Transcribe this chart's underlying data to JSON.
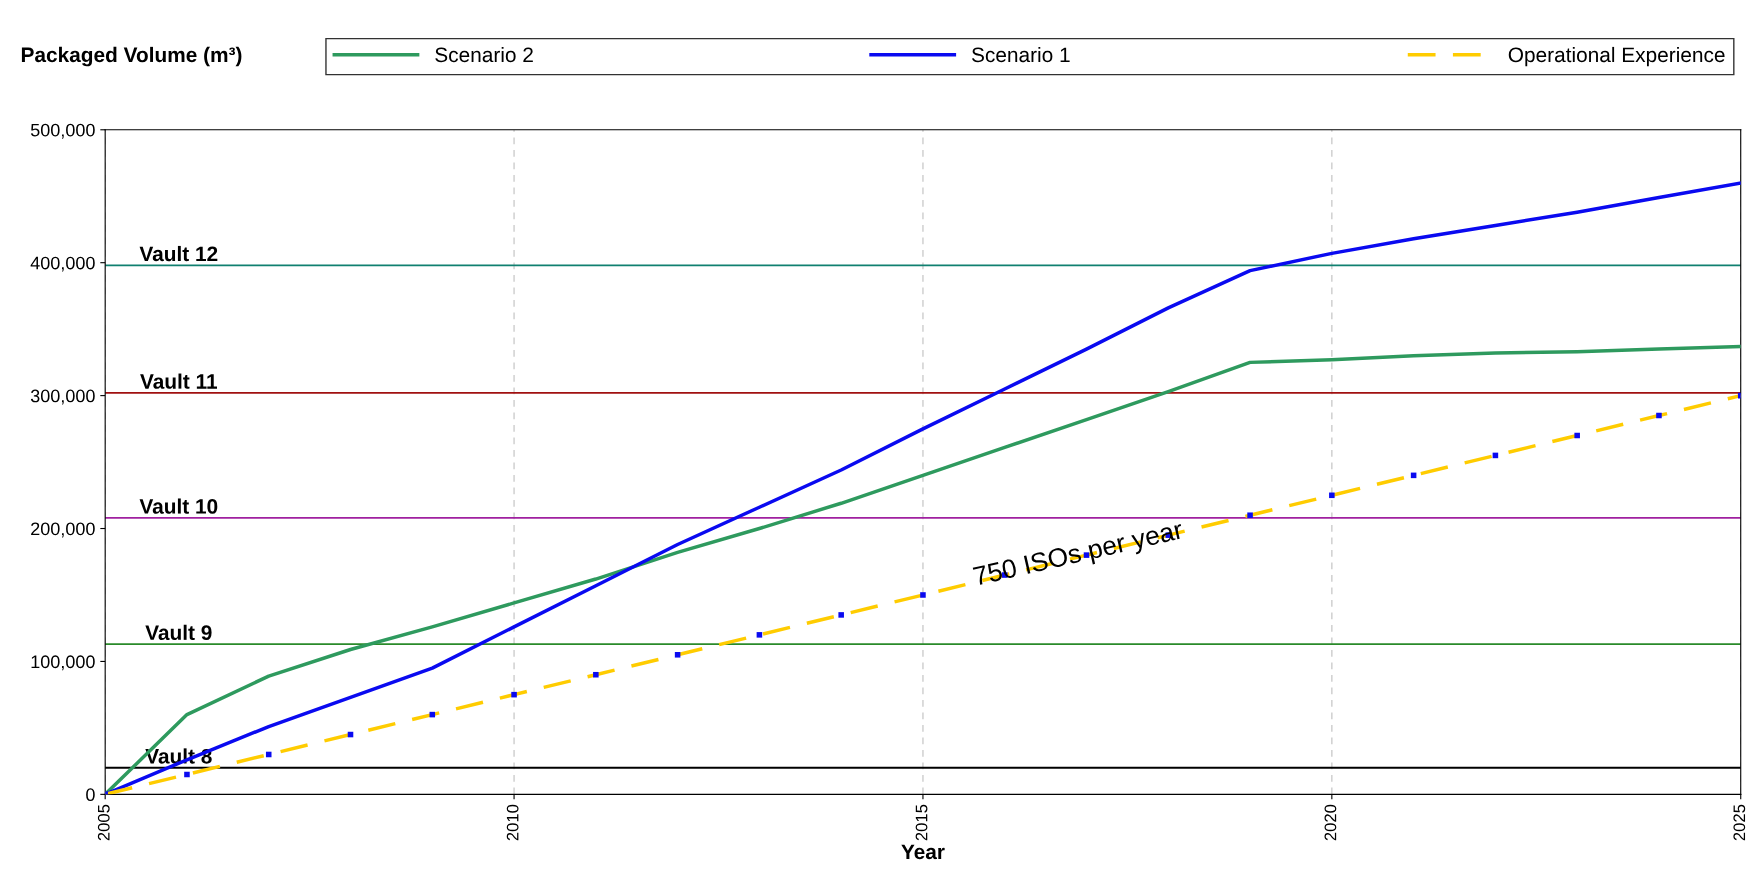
{
  "chart_data": {
    "type": "line",
    "xlabel": "Year",
    "ylabel": "Packaged Volume (m³)",
    "x": [
      2005,
      2006,
      2007,
      2008,
      2009,
      2010,
      2011,
      2012,
      2013,
      2014,
      2015,
      2016,
      2017,
      2018,
      2019,
      2020,
      2021,
      2022,
      2023,
      2024,
      2025
    ],
    "series": [
      {
        "name": "Scenario 2",
        "color": "#2e9a5e",
        "values": [
          0,
          60000,
          89000,
          109000,
          126000,
          144000,
          162000,
          182000,
          200000,
          219000,
          240000,
          261000,
          282000,
          303000,
          325000,
          327000,
          330000,
          332000,
          333000,
          335000,
          337000
        ]
      },
      {
        "name": "Scenario 1",
        "color": "#0a0af0",
        "values": [
          0,
          26000,
          51000,
          73000,
          95000,
          126000,
          157000,
          188000,
          216000,
          244000,
          275000,
          305000,
          335000,
          366000,
          394000,
          407000,
          418000,
          428000,
          438000,
          449000,
          460000
        ]
      },
      {
        "name": "Operational Experience",
        "color": "#ffcc00",
        "line_style": "dashed",
        "values": [
          0,
          15000,
          30000,
          45000,
          60000,
          75000,
          90000,
          105000,
          120000,
          135000,
          150000,
          165000,
          180000,
          195000,
          210000,
          225000,
          240000,
          255000,
          270000,
          285000,
          300000
        ]
      },
      {
        "type": "scatter",
        "color": "#0a0af0",
        "marker": "square",
        "values": [
          0,
          15000,
          30000,
          45000,
          60000,
          75000,
          90000,
          105000,
          120000,
          135000,
          150000,
          165000,
          180000,
          195000,
          210000,
          225000,
          240000,
          255000,
          270000,
          285000,
          300000
        ]
      }
    ],
    "xlim": [
      2005,
      2025
    ],
    "xticks": [
      2005,
      2010,
      2015,
      2020,
      2025
    ],
    "ylim": [
      0,
      500000
    ],
    "yticks": [
      {
        "value": 0,
        "label": "0"
      },
      {
        "value": 100000,
        "label": "100,000"
      },
      {
        "value": 200000,
        "label": "200,000"
      },
      {
        "value": 300000,
        "label": "300,000"
      },
      {
        "value": 400000,
        "label": "400,000"
      },
      {
        "value": 500000,
        "label": "500,000"
      }
    ],
    "ref_lines": [
      {
        "axis": "y",
        "value": 20000,
        "label": "Vault 8",
        "color": "#000000"
      },
      {
        "axis": "y",
        "value": 113000,
        "label": "Vault 9",
        "color": "#2a8a2a"
      },
      {
        "axis": "y",
        "value": 208000,
        "label": "Vault 10",
        "color": "#a020a0"
      },
      {
        "axis": "y",
        "value": 302000,
        "label": "Vault 11",
        "color": "#a01010"
      },
      {
        "axis": "y",
        "value": 398000,
        "label": "Vault 12",
        "color": "#108070"
      }
    ],
    "annotations": [
      "750 ISOs per year"
    ],
    "grid": "x",
    "legend": "top"
  }
}
